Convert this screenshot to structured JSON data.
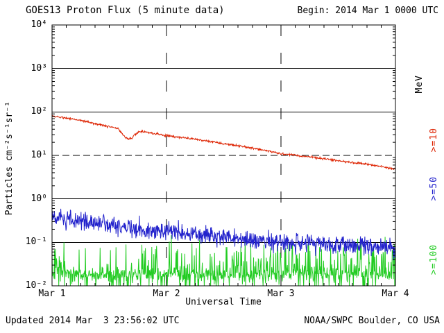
{
  "header": {
    "title": "GOES13 Proton Flux (5 minute data)",
    "begin": "Begin: 2014 Mar 1 0000 UTC"
  },
  "footer": {
    "updated": "Updated 2014 Mar  3 23:56:02 UTC",
    "source": "NOAA/SWPC Boulder, CO USA"
  },
  "axes": {
    "x_label": "Universal Time",
    "y_label": "Particles cm⁻²s⁻¹sr⁻¹",
    "x_tick_labels": [
      "Mar 1",
      "Mar 2",
      "Mar 3",
      "Mar 4"
    ],
    "y_tick_labels": [
      "10⁴",
      "10³",
      "10²",
      "10¹",
      "10⁰",
      "10⁻¹",
      "10⁻²"
    ]
  },
  "right_axis": {
    "units": "MeV",
    "series_labels": [
      ">=10",
      ">=50",
      ">=100"
    ]
  },
  "chart_data": {
    "type": "line",
    "title": "GOES13 Proton Flux (5 minute data)",
    "x_label": "Universal Time",
    "y_label": "Particles cm⁻²s⁻¹sr⁻¹",
    "x_unit_days_from": "2014 Mar 1 0000 UTC",
    "x_range_days": [
      0,
      3
    ],
    "x_tick_labels": [
      "Mar 1",
      "Mar 2",
      "Mar 3",
      "Mar 4"
    ],
    "y_scale": "log10",
    "y_exponent_range": [
      -2,
      4
    ],
    "alert_threshold": 10,
    "sample_minutes": 5,
    "grid": "solid decade lines, dashed line at 10^1, dashed verticals at day boundaries",
    "series": [
      {
        "name": ">=10 MeV",
        "color": "#dd2200",
        "seed": 5,
        "noise_dex": 0.025,
        "trend": [
          [
            0,
            80
          ],
          [
            0.05,
            77
          ],
          [
            0.1,
            74
          ],
          [
            0.15,
            71
          ],
          [
            0.2,
            68
          ],
          [
            0.25,
            64
          ],
          [
            0.3,
            60
          ],
          [
            0.35,
            56
          ],
          [
            0.4,
            52
          ],
          [
            0.45,
            49
          ],
          [
            0.5,
            46
          ],
          [
            0.55,
            43
          ],
          [
            0.58,
            40
          ],
          [
            0.61,
            33
          ],
          [
            0.64,
            26
          ],
          [
            0.67,
            24
          ],
          [
            0.7,
            25
          ],
          [
            0.72,
            30
          ],
          [
            0.75,
            34
          ],
          [
            0.78,
            36
          ],
          [
            0.8,
            35
          ],
          [
            0.85,
            33
          ],
          [
            0.9,
            32
          ],
          [
            0.95,
            30
          ],
          [
            1,
            29
          ],
          [
            1.1,
            26.5
          ],
          [
            1.2,
            24.5
          ],
          [
            1.3,
            22.5
          ],
          [
            1.4,
            20.5
          ],
          [
            1.5,
            18.5
          ],
          [
            1.6,
            17
          ],
          [
            1.7,
            15.5
          ],
          [
            1.8,
            14
          ],
          [
            1.9,
            12.5
          ],
          [
            2,
            11
          ],
          [
            2.1,
            10.3
          ],
          [
            2.2,
            9.6
          ],
          [
            2.3,
            8.8
          ],
          [
            2.4,
            8.2
          ],
          [
            2.5,
            7.6
          ],
          [
            2.6,
            7
          ],
          [
            2.7,
            6.5
          ],
          [
            2.8,
            6
          ],
          [
            2.9,
            5.4
          ],
          [
            3,
            4.8
          ]
        ]
      },
      {
        "name": ">=50 MeV",
        "color": "#2222cc",
        "seed": 9,
        "noise_dex": 0.22,
        "trend": [
          [
            0,
            0.36
          ],
          [
            0.1,
            0.33
          ],
          [
            0.2,
            0.31
          ],
          [
            0.3,
            0.29
          ],
          [
            0.4,
            0.27
          ],
          [
            0.5,
            0.25
          ],
          [
            0.6,
            0.23
          ],
          [
            0.7,
            0.21
          ],
          [
            0.8,
            0.2
          ],
          [
            0.9,
            0.19
          ],
          [
            1,
            0.18
          ],
          [
            1.1,
            0.17
          ],
          [
            1.2,
            0.16
          ],
          [
            1.3,
            0.15
          ],
          [
            1.4,
            0.14
          ],
          [
            1.5,
            0.135
          ],
          [
            1.6,
            0.13
          ],
          [
            1.7,
            0.12
          ],
          [
            1.8,
            0.115
          ],
          [
            1.9,
            0.11
          ],
          [
            2,
            0.105
          ],
          [
            2.1,
            0.1
          ],
          [
            2.2,
            0.095
          ],
          [
            2.3,
            0.09
          ],
          [
            2.4,
            0.088
          ],
          [
            2.5,
            0.085
          ],
          [
            2.6,
            0.082
          ],
          [
            2.7,
            0.08
          ],
          [
            2.8,
            0.078
          ],
          [
            2.9,
            0.076
          ],
          [
            3,
            0.073
          ]
        ]
      },
      {
        "name": ">=100 MeV",
        "color": "#22cc22",
        "seed": 3,
        "noise_dex": 0.14,
        "spike_dex": 0.8,
        "spike_prob_segments": [
          [
            0,
            0.13,
            0.5
          ],
          [
            0.13,
            0.75,
            0.12
          ],
          [
            0.75,
            1.5,
            0.35
          ],
          [
            1.5,
            3.01,
            0.45
          ]
        ],
        "down_spike_prob": 0.18,
        "down_spike_dex": 0.6,
        "trend": [
          [
            0,
            0.02
          ],
          [
            0.5,
            0.018
          ],
          [
            1,
            0.019
          ],
          [
            1.5,
            0.018
          ],
          [
            2,
            0.019
          ],
          [
            2.5,
            0.018
          ],
          [
            3,
            0.018
          ]
        ]
      }
    ]
  }
}
